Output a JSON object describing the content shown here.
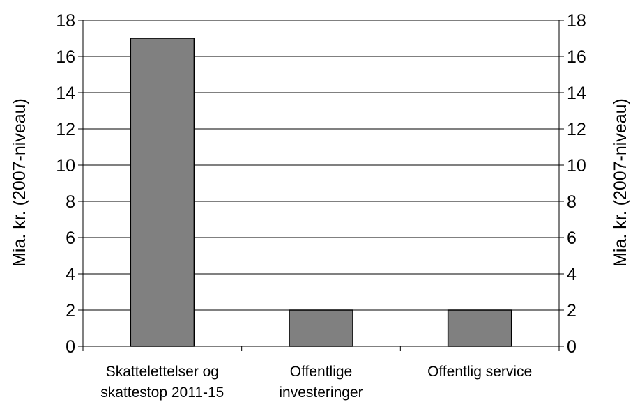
{
  "chart_data": {
    "type": "bar",
    "categories": [
      [
        "Skattelettelser og",
        "skattestop 2011-15"
      ],
      [
        "Offentlige",
        "investeringer"
      ],
      [
        "Offentlig service"
      ]
    ],
    "values": [
      17,
      2,
      2
    ],
    "ylabel": "Mia. kr. (2007-niveau)",
    "ylabel_right": "Mia. kr. (2007-niveau)",
    "ylim": [
      0,
      18
    ],
    "yticks": [
      0,
      2,
      4,
      6,
      8,
      10,
      12,
      14,
      16,
      18
    ],
    "grid": true,
    "bar_color": "#808080",
    "bar_edge_color": "#000000"
  }
}
